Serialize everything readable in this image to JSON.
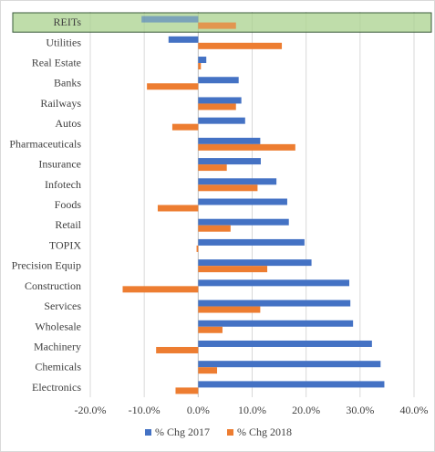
{
  "chart_data": {
    "type": "bar",
    "orientation": "horizontal",
    "categories": [
      "REITs",
      "Utilities",
      "Real Estate",
      "Banks",
      "Railways",
      "Autos",
      "Pharmaceuticals",
      "Insurance",
      "Infotech",
      "Foods",
      "Retail",
      "TOPIX",
      "Precision Equip",
      "Construction",
      "Services",
      "Wholesale",
      "Machinery",
      "Chemicals",
      "Electronics"
    ],
    "series": [
      {
        "name": "% Chg 2017",
        "color": "#4472c4",
        "values": [
          -10.5,
          -5.5,
          1.5,
          7.5,
          8.0,
          8.7,
          11.5,
          11.6,
          14.5,
          16.5,
          16.8,
          19.7,
          21.0,
          28.0,
          28.2,
          28.7,
          32.2,
          33.8,
          34.5
        ]
      },
      {
        "name": "% Chg 2018",
        "color": "#ed7d31",
        "values": [
          7.0,
          15.5,
          0.5,
          -9.5,
          7.0,
          -4.8,
          18.0,
          5.3,
          11.0,
          -7.5,
          6.0,
          -0.3,
          12.8,
          -14.0,
          11.5,
          4.5,
          -7.8,
          3.5,
          -4.2
        ]
      }
    ],
    "xlim": [
      -20,
      40
    ],
    "xticks": [
      -20,
      -10,
      0,
      10,
      20,
      30,
      40
    ],
    "xtick_labels": [
      "-20.0%",
      "-10.0%",
      "0.0%",
      "10.0%",
      "20.0%",
      "30.0%",
      "40.0%"
    ],
    "highlighted_category": "REITs",
    "highlight_color": "#a9d18e",
    "grid": true,
    "legend_position": "bottom",
    "title": "",
    "xlabel": "",
    "ylabel": ""
  }
}
